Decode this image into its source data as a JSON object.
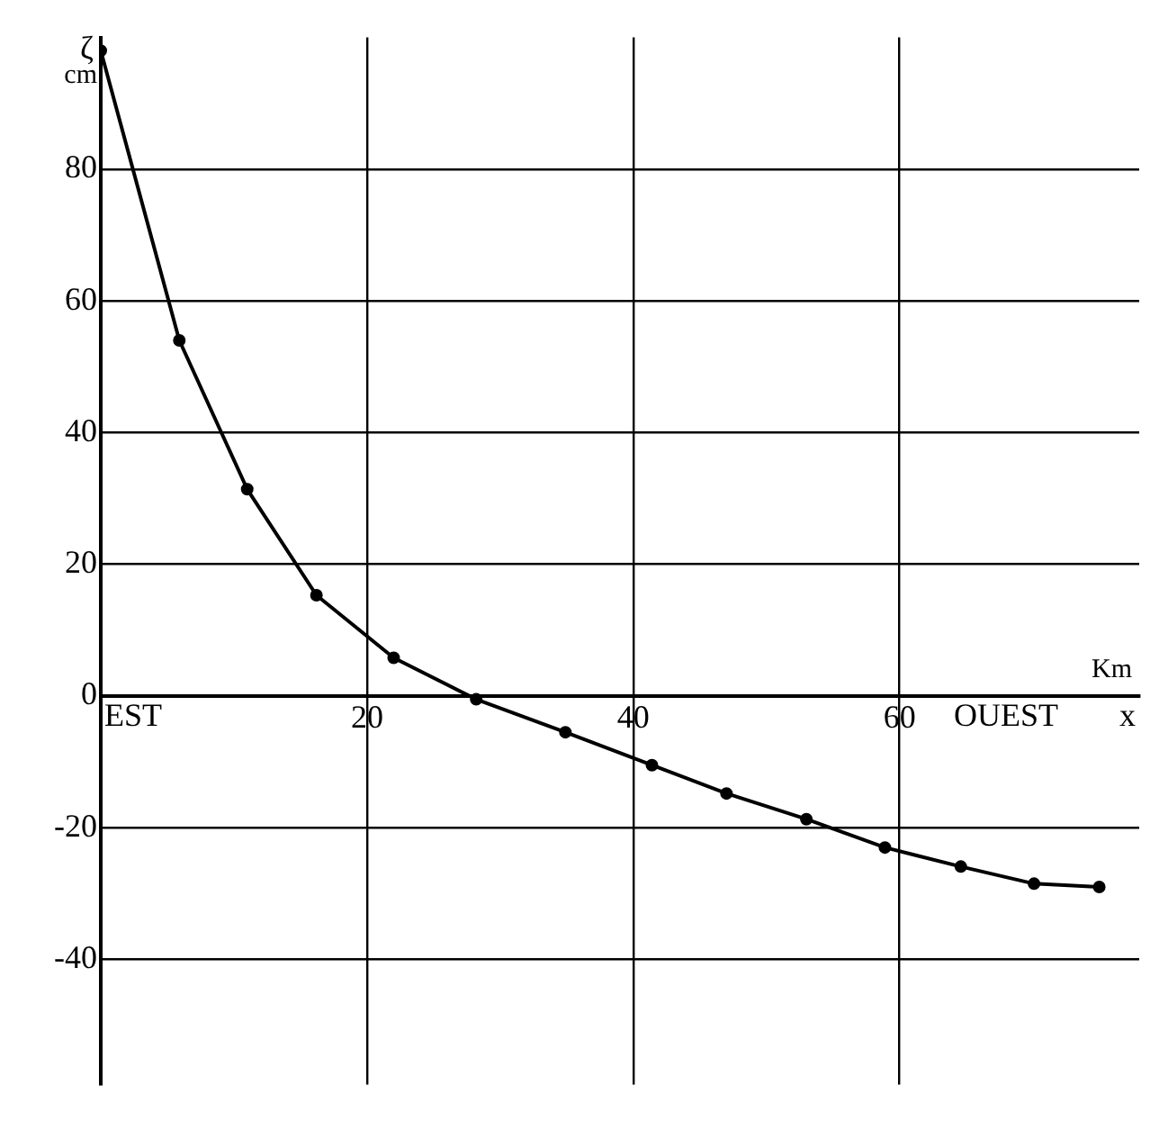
{
  "chart_data": {
    "type": "line",
    "xlabel": "Km x",
    "ylabel": "ζ cm",
    "annotations": [
      "EST",
      "OUEST"
    ],
    "x": [
      0,
      5.9,
      11,
      16.2,
      22,
      28.2,
      34.9,
      41.4,
      47,
      53,
      58.9,
      64.6,
      70.1,
      75
    ],
    "series": [
      {
        "color": "#000000",
        "values": [
          98,
          54,
          31.4,
          15.3,
          5.8,
          -0.5,
          -5.5,
          -10.5,
          -14.8,
          -18.7,
          -23,
          -25.9,
          -28.5,
          -29
        ]
      }
    ],
    "xlim": [
      0,
      78
    ],
    "ylim": [
      -59,
      100
    ],
    "xticks": [
      20,
      40,
      60
    ],
    "yticks": [
      -40,
      -20,
      0,
      20,
      40,
      60,
      80
    ],
    "grid": true,
    "legend": false,
    "marker": "circle",
    "line_style": "solid"
  }
}
